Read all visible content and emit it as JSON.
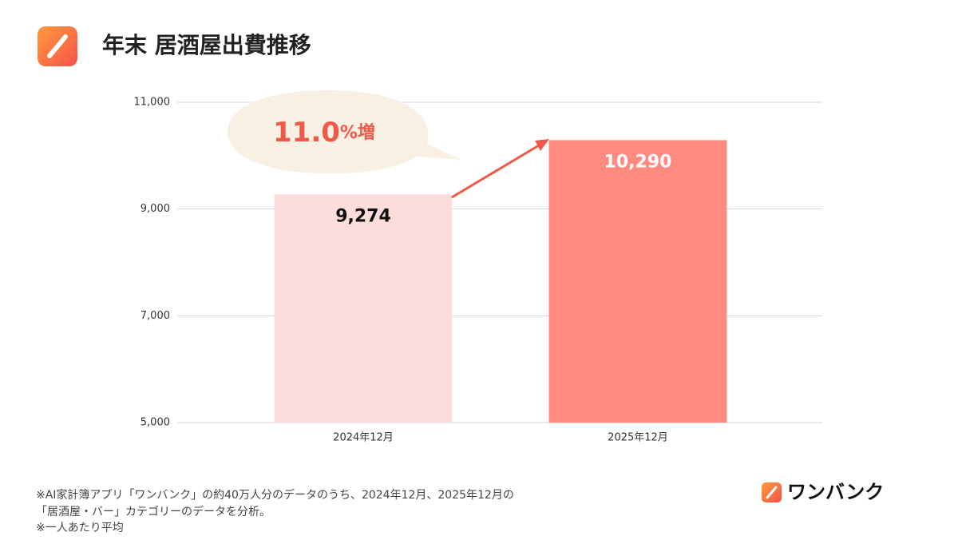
{
  "chart_data": {
    "type": "bar",
    "title": "年末 居酒屋出費推移",
    "categories": [
      "2024年12月",
      "2025年12月"
    ],
    "values": [
      9274,
      10290
    ],
    "value_labels": [
      "9,274",
      "10,290"
    ],
    "colors": [
      "#fddcdc",
      "#fe8a80"
    ],
    "ylim": [
      5000,
      11000
    ],
    "yticks": [
      {
        "value": 5000,
        "label": "5,000"
      },
      {
        "value": 7000,
        "label": "7,000"
      },
      {
        "value": 9000,
        "label": "9,000"
      },
      {
        "value": 11000,
        "label": "11,000"
      }
    ],
    "grid": true,
    "annotation": [
      "11.0",
      "%増"
    ],
    "footnotes": [
      "※AI家計簿アプリ「ワンバンク」の約40万人分のデータのうち、2024年12月、2025年12月の",
      "「居酒屋・バー」カテゴリーのデータを分析。",
      "※一人あたり平均"
    ],
    "brand": "ワンバンク"
  }
}
